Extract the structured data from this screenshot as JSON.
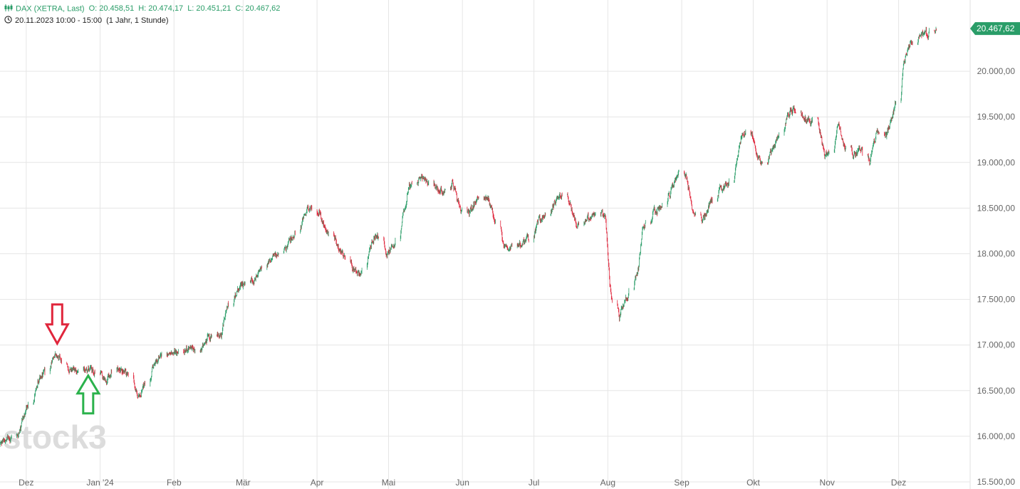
{
  "header": {
    "instrument": "DAX (XETRA, Last)",
    "open": "O: 20.458,51",
    "high": "H: 20.474,17",
    "low": "L: 20.451,21",
    "close": "C: 20.467,62",
    "range": "20.11.2023 10:00 - 15:00",
    "period": "(1 Jahr, 1 Stunde)",
    "icons": [
      "candlestick-icon",
      "clock-icon"
    ]
  },
  "watermark": "stock3",
  "last_price_label": "20.467,62",
  "colors": {
    "up": "#2a9d68",
    "down": "#e0263c",
    "grid": "#e6e6e6",
    "axis_text": "#666666",
    "price_tag": "#2a9d68",
    "red_arrow": "#e0263c",
    "green_arrow": "#2bb24c",
    "watermark": "#dcdcdc"
  },
  "chart_data": {
    "type": "candlestick",
    "title": "",
    "xlabel": "",
    "ylabel": "",
    "ylim": [
      15500,
      20500
    ],
    "y_ticks": [
      15500,
      16000,
      16500,
      17000,
      17500,
      18000,
      18500,
      19000,
      19500,
      20000
    ],
    "y_tick_labels": [
      "15.500,00",
      "16.000,00",
      "16.500,00",
      "17.000,00",
      "17.500,00",
      "18.000,00",
      "18.500,00",
      "19.000,00",
      "19.500,00",
      "20.000,00"
    ],
    "x_range": [
      "2023-11-20",
      "2024-12-31"
    ],
    "x_ticks": [
      "2023-12-01",
      "2024-01-01",
      "2024-02-01",
      "2024-03-01",
      "2024-04-01",
      "2024-05-01",
      "2024-06-01",
      "2024-07-01",
      "2024-08-01",
      "2024-09-01",
      "2024-10-01",
      "2024-11-01",
      "2024-12-01"
    ],
    "x_tick_labels": [
      "Dez",
      "Jan '24",
      "Feb",
      "Mär",
      "Apr",
      "Mai",
      "Jun",
      "Jul",
      "Aug",
      "Sep",
      "Okt",
      "Nov",
      "Dez"
    ],
    "grid": true,
    "last_value": 20467.62,
    "annotations": [
      {
        "type": "arrow-down",
        "color": "red",
        "date": "2023-12-14",
        "value": 17000
      },
      {
        "type": "arrow-up",
        "color": "green",
        "date": "2023-12-27",
        "value": 16680
      }
    ],
    "series": [
      {
        "path": [
          [
            "2023-11-20",
            15900
          ],
          [
            "2023-11-23",
            15990
          ],
          [
            "2023-11-28",
            16020
          ],
          [
            "2023-12-01",
            16280
          ],
          [
            "2023-12-04",
            16450
          ],
          [
            "2023-12-07",
            16650
          ],
          [
            "2023-12-11",
            16780
          ],
          [
            "2023-12-14",
            16900
          ],
          [
            "2023-12-18",
            16720
          ],
          [
            "2023-12-21",
            16730
          ],
          [
            "2023-12-27",
            16740
          ],
          [
            "2024-01-02",
            16690
          ],
          [
            "2024-01-04",
            16560
          ],
          [
            "2024-01-06",
            16720
          ],
          [
            "2024-01-10",
            16720
          ],
          [
            "2024-01-14",
            16650
          ],
          [
            "2024-01-17",
            16430
          ],
          [
            "2024-01-20",
            16560
          ],
          [
            "2024-01-24",
            16820
          ],
          [
            "2024-01-29",
            16930
          ],
          [
            "2024-02-02",
            16920
          ],
          [
            "2024-02-08",
            16960
          ],
          [
            "2024-02-12",
            16950
          ],
          [
            "2024-02-16",
            17080
          ],
          [
            "2024-02-21",
            17100
          ],
          [
            "2024-02-23",
            17400
          ],
          [
            "2024-02-29",
            17650
          ],
          [
            "2024-03-05",
            17700
          ],
          [
            "2024-03-08",
            17800
          ],
          [
            "2024-03-12",
            17920
          ],
          [
            "2024-03-15",
            17980
          ],
          [
            "2024-03-18",
            17990
          ],
          [
            "2024-03-21",
            18150
          ],
          [
            "2024-03-25",
            18300
          ],
          [
            "2024-03-28",
            18480
          ],
          [
            "2024-04-01",
            18520
          ],
          [
            "2024-04-05",
            18250
          ],
          [
            "2024-04-09",
            18150
          ],
          [
            "2024-04-12",
            18000
          ],
          [
            "2024-04-15",
            17880
          ],
          [
            "2024-04-18",
            17780
          ],
          [
            "2024-04-20",
            17820
          ],
          [
            "2024-04-24",
            18120
          ],
          [
            "2024-04-26",
            18200
          ],
          [
            "2024-04-30",
            18000
          ],
          [
            "2024-05-03",
            18050
          ],
          [
            "2024-05-07",
            18400
          ],
          [
            "2024-05-10",
            18750
          ],
          [
            "2024-05-15",
            18860
          ],
          [
            "2024-05-20",
            18720
          ],
          [
            "2024-05-24",
            18680
          ],
          [
            "2024-05-28",
            18800
          ],
          [
            "2024-05-31",
            18500
          ],
          [
            "2024-06-04",
            18450
          ],
          [
            "2024-06-07",
            18600
          ],
          [
            "2024-06-10",
            18700
          ],
          [
            "2024-06-14",
            18450
          ],
          [
            "2024-06-17",
            18200
          ],
          [
            "2024-06-20",
            18050
          ],
          [
            "2024-06-25",
            18100
          ],
          [
            "2024-07-01",
            18200
          ],
          [
            "2024-07-03",
            18350
          ],
          [
            "2024-07-08",
            18500
          ],
          [
            "2024-07-12",
            18650
          ],
          [
            "2024-07-16",
            18550
          ],
          [
            "2024-07-19",
            18300
          ],
          [
            "2024-07-24",
            18400
          ],
          [
            "2024-07-29",
            18450
          ],
          [
            "2024-07-31",
            18450
          ],
          [
            "2024-08-01",
            18100
          ],
          [
            "2024-08-02",
            17650
          ],
          [
            "2024-08-05",
            17150
          ],
          [
            "2024-08-07",
            17400
          ],
          [
            "2024-08-12",
            17700
          ],
          [
            "2024-08-14",
            17850
          ],
          [
            "2024-08-16",
            18300
          ],
          [
            "2024-08-21",
            18450
          ],
          [
            "2024-08-26",
            18600
          ],
          [
            "2024-08-31",
            18900
          ],
          [
            "2024-09-03",
            18850
          ],
          [
            "2024-09-06",
            18450
          ],
          [
            "2024-09-10",
            18350
          ],
          [
            "2024-09-13",
            18550
          ],
          [
            "2024-09-17",
            18700
          ],
          [
            "2024-09-20",
            18750
          ],
          [
            "2024-09-23",
            18850
          ],
          [
            "2024-09-26",
            19250
          ],
          [
            "2024-09-30",
            19400
          ],
          [
            "2024-10-03",
            19050
          ],
          [
            "2024-10-07",
            19000
          ],
          [
            "2024-10-10",
            19200
          ],
          [
            "2024-10-14",
            19400
          ],
          [
            "2024-10-17",
            19600
          ],
          [
            "2024-10-21",
            19500
          ],
          [
            "2024-10-25",
            19450
          ],
          [
            "2024-10-28",
            19500
          ],
          [
            "2024-10-31",
            19100
          ],
          [
            "2024-11-04",
            19150
          ],
          [
            "2024-11-06",
            19450
          ],
          [
            "2024-11-08",
            19200
          ],
          [
            "2024-11-12",
            19050
          ],
          [
            "2024-11-15",
            19150
          ],
          [
            "2024-11-19",
            19000
          ],
          [
            "2024-11-22",
            19350
          ],
          [
            "2024-11-26",
            19300
          ],
          [
            "2024-11-29",
            19550
          ],
          [
            "2024-12-02",
            19900
          ],
          [
            "2024-12-05",
            20250
          ],
          [
            "2024-12-09",
            20380
          ],
          [
            "2024-12-12",
            20400
          ],
          [
            "2024-12-16",
            20470
          ]
        ]
      }
    ]
  }
}
